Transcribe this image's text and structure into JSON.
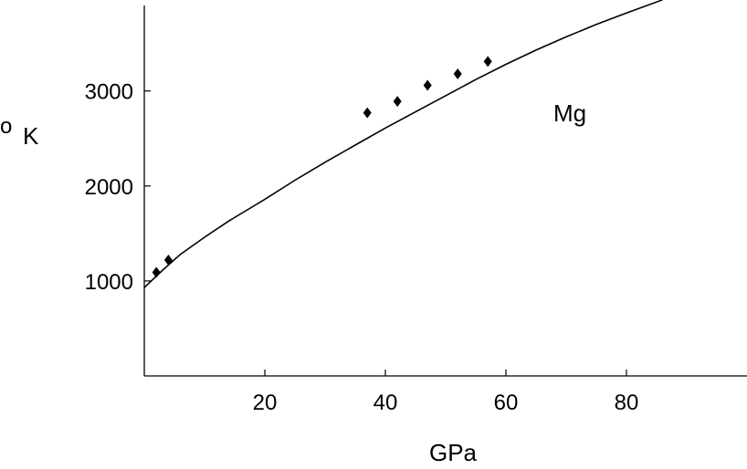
{
  "chart_data": {
    "type": "scatter",
    "xlabel": "GPa",
    "ylabel_parts": [
      "o",
      "K"
    ],
    "annotation": "Mg",
    "xlim": [
      0,
      100
    ],
    "ylim": [
      0,
      3900
    ],
    "x_ticks": [
      20,
      40,
      60,
      80
    ],
    "y_ticks": [
      1000,
      2000,
      3000
    ],
    "grid": false,
    "series": [
      {
        "type": "line",
        "x": [
          0,
          3,
          6,
          10,
          14,
          20,
          25,
          30,
          35,
          40,
          45,
          50,
          55,
          60,
          65,
          70,
          75,
          80,
          86
        ],
        "y": [
          930,
          1110,
          1280,
          1460,
          1630,
          1860,
          2060,
          2250,
          2430,
          2610,
          2780,
          2950,
          3120,
          3280,
          3430,
          3570,
          3700,
          3820,
          3960
        ]
      },
      {
        "type": "scatter",
        "marker": "diamond",
        "x": [
          2,
          4,
          37,
          42,
          47,
          52,
          57
        ],
        "y": [
          1090,
          1220,
          2770,
          2890,
          3060,
          3180,
          3310
        ]
      }
    ]
  }
}
